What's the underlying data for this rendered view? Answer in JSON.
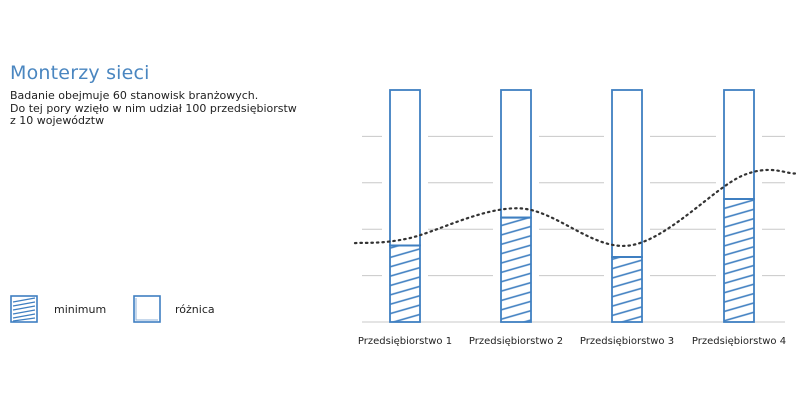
{
  "header": {
    "title": "Monterzy sieci",
    "desc_lines": [
      "Badanie obejmuje 60 stanowisk branżowych.",
      "Do tej pory wzięło w nim udział  100 przedsiębiorstw",
      "z 10 województw"
    ]
  },
  "legend": {
    "minimum": "minimum",
    "roznica": "różnica"
  },
  "colors": {
    "accent": "#3f7fc1",
    "grid": "#c8c8c8",
    "trend": "#333333"
  },
  "chart_data": {
    "type": "bar",
    "stacked": true,
    "categories": [
      "Przedsiębiorstwo 1",
      "Przedsiębiorstwo 2",
      "Przedsiębiorstwo 3",
      "Przedsiębiorstwo 4"
    ],
    "ylim": [
      0,
      100
    ],
    "grid": true,
    "series": [
      {
        "name": "minimum",
        "values": [
          33,
          45,
          28,
          53
        ],
        "fill": "hatched"
      },
      {
        "name": "różnica",
        "values": [
          67,
          55,
          72,
          47
        ],
        "fill": "outline"
      }
    ],
    "trend": {
      "style": "dotted",
      "values": [
        36,
        49,
        33,
        63
      ]
    }
  }
}
